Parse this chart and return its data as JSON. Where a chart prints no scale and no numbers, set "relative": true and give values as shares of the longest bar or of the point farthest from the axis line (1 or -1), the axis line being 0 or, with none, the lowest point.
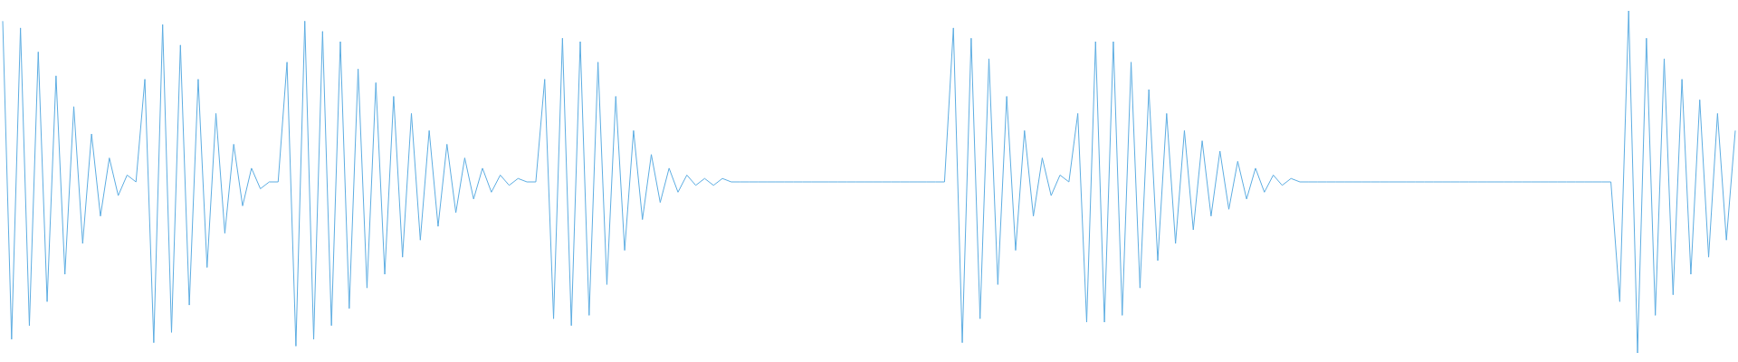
{
  "chart_data": {
    "type": "line",
    "relative": true,
    "color": "#5dade2",
    "marker": "none",
    "line_style": "solid",
    "categories": [
      null,
      null,
      null,
      null,
      null,
      null,
      null,
      null,
      null,
      null,
      null,
      null,
      null,
      null,
      null,
      null,
      null,
      null,
      null,
      null,
      null,
      null,
      null,
      null,
      null,
      null,
      null,
      null,
      null,
      null,
      null,
      null,
      null,
      null,
      null,
      null,
      null,
      null,
      null,
      null,
      null,
      null,
      null,
      null,
      null,
      null,
      null,
      null,
      null,
      null,
      null,
      null,
      null,
      null,
      null,
      null,
      null,
      null,
      null,
      null,
      null,
      null,
      null,
      null,
      null,
      null,
      null,
      null,
      null,
      null,
      null,
      null,
      null,
      null,
      null,
      null,
      null,
      null,
      null,
      null,
      null,
      null,
      null,
      null,
      null,
      null,
      null,
      null,
      null,
      null,
      null,
      null,
      null,
      null,
      null,
      null,
      null,
      null,
      null,
      null,
      null,
      null,
      null,
      null,
      null,
      null,
      null,
      null,
      null,
      null,
      null,
      null,
      null,
      null,
      null,
      null,
      null,
      null,
      null,
      null,
      null,
      null,
      null,
      null,
      null,
      null,
      null,
      null,
      null,
      null,
      null,
      null,
      null,
      null,
      null,
      null,
      null,
      null,
      null,
      null,
      null,
      null,
      null,
      null,
      null,
      null,
      null,
      null,
      null,
      null,
      null,
      null,
      null,
      null,
      null,
      null,
      null,
      null,
      null,
      null,
      null,
      null,
      null,
      null,
      null,
      null,
      null,
      null,
      null,
      null,
      null,
      null,
      null,
      null,
      null,
      null,
      null,
      null,
      null,
      null,
      null,
      null,
      null,
      null,
      null,
      null,
      null,
      null,
      null,
      null,
      null,
      null,
      null,
      null,
      null,
      null
    ],
    "values": [
      0.97,
      0.04,
      0.95,
      0.08,
      0.88,
      0.15,
      0.81,
      0.23,
      0.72,
      0.32,
      0.64,
      0.4,
      0.57,
      0.46,
      0.52,
      0.5,
      0.8,
      0.03,
      0.96,
      0.06,
      0.9,
      0.14,
      0.8,
      0.25,
      0.7,
      0.35,
      0.61,
      0.43,
      0.54,
      0.48,
      0.5,
      0.5,
      0.85,
      0.02,
      0.97,
      0.04,
      0.94,
      0.08,
      0.91,
      0.13,
      0.83,
      0.19,
      0.79,
      0.23,
      0.75,
      0.28,
      0.7,
      0.33,
      0.65,
      0.37,
      0.61,
      0.41,
      0.57,
      0.45,
      0.54,
      0.47,
      0.52,
      0.49,
      0.51,
      0.5,
      0.5,
      0.8,
      0.1,
      0.92,
      0.08,
      0.91,
      0.11,
      0.85,
      0.2,
      0.75,
      0.3,
      0.65,
      0.39,
      0.58,
      0.44,
      0.54,
      0.47,
      0.52,
      0.49,
      0.51,
      0.49,
      0.51,
      0.5,
      0.5,
      0.5,
      0.5,
      0.5,
      0.5,
      0.5,
      0.5,
      0.5,
      0.5,
      0.5,
      0.5,
      0.5,
      0.5,
      0.5,
      0.5,
      0.5,
      0.5,
      0.5,
      0.5,
      0.5,
      0.5,
      0.5,
      0.5,
      0.5,
      0.95,
      0.03,
      0.92,
      0.1,
      0.86,
      0.2,
      0.75,
      0.3,
      0.65,
      0.4,
      0.57,
      0.46,
      0.52,
      0.5,
      0.7,
      0.09,
      0.91,
      0.09,
      0.91,
      0.11,
      0.85,
      0.19,
      0.77,
      0.27,
      0.7,
      0.32,
      0.65,
      0.36,
      0.62,
      0.4,
      0.59,
      0.42,
      0.56,
      0.45,
      0.54,
      0.47,
      0.52,
      0.49,
      0.51,
      0.5,
      0.5,
      0.5,
      0.5,
      0.5,
      0.5,
      0.5,
      0.5,
      0.5,
      0.5,
      0.5,
      0.5,
      0.5,
      0.5,
      0.5,
      0.5,
      0.5,
      0.5,
      0.5,
      0.5,
      0.5,
      0.5,
      0.5,
      0.5,
      0.5,
      0.5,
      0.5,
      0.5,
      0.5,
      0.5,
      0.5,
      0.5,
      0.5,
      0.5,
      0.5,
      0.5,
      0.15,
      1,
      0,
      0.92,
      0.11,
      0.86,
      0.17,
      0.8,
      0.23,
      0.74,
      0.28,
      0.7,
      0.33,
      0.65
    ]
  }
}
